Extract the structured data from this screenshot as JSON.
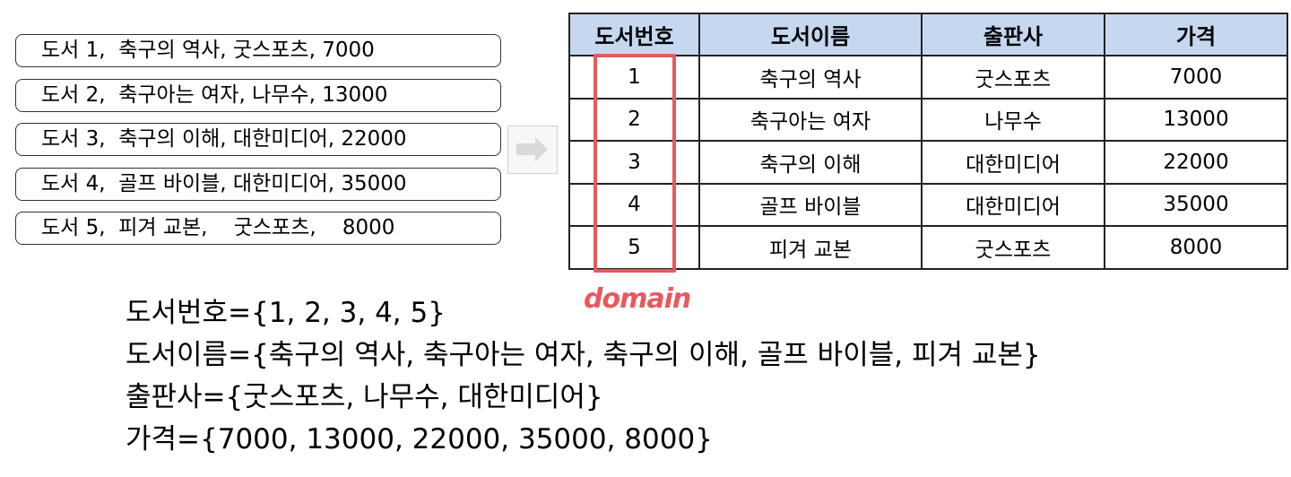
{
  "records": [
    "도서 1,  축구의 역사, 굿스포츠, 7000",
    "도서 2,  축구아는 여자, 나무수, 13000",
    "도서 3,  축구의 이해, 대한미디어, 22000",
    "도서 4,  골프 바이블, 대한미디어, 35000",
    "도서 5,  피겨 교본,    굿스포츠,    8000"
  ],
  "table": {
    "headers": [
      "도서번호",
      "도서이름",
      "출판사",
      "가격"
    ],
    "rows": [
      [
        "1",
        "축구의 역사",
        "굿스포츠",
        "7000"
      ],
      [
        "2",
        "축구아는 여자",
        "나무수",
        "13000"
      ],
      [
        "3",
        "축구의 이해",
        "대한미디어",
        "22000"
      ],
      [
        "4",
        "골프 바이블",
        "대한미디어",
        "35000"
      ],
      [
        "5",
        "피겨 교본",
        "굿스포츠",
        "8000"
      ]
    ]
  },
  "annotation": {
    "label": "domain",
    "color": "#e8585d"
  },
  "domains": [
    "도서번호={1, 2, 3, 4, 5}",
    "도서이름={축구의 역사, 축구아는 여자, 축구의 이해, 골프 바이블, 피겨 교본}",
    "출판사={굿스포츠, 나무수, 대한미디어}",
    "가격={7000, 13000, 22000, 35000, 8000}"
  ],
  "colors": {
    "header_bg": "#c6d8f0",
    "arrow": "#d9d9d9"
  },
  "icons": {
    "transform_arrow": "right-arrow-icon"
  }
}
